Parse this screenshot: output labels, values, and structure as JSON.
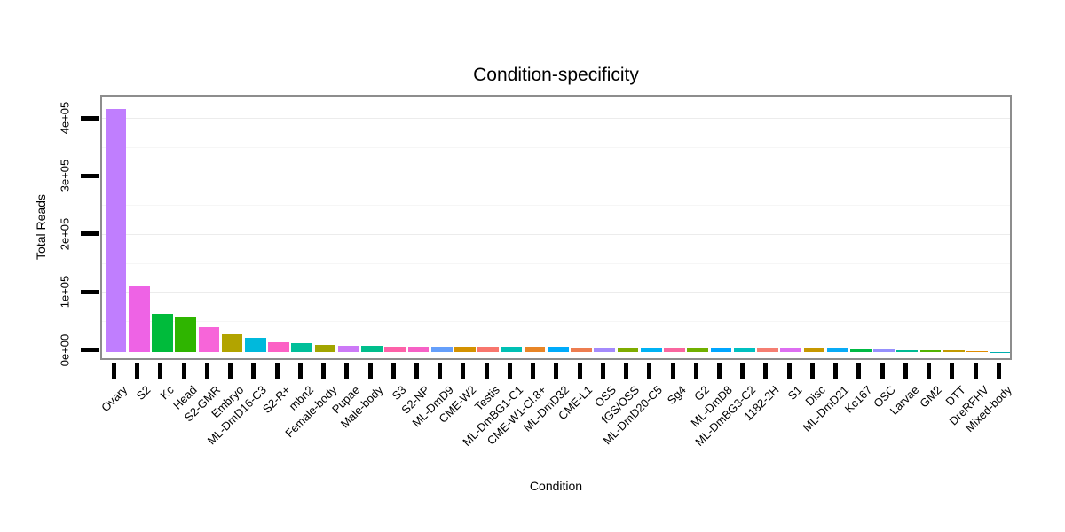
{
  "chart_data": {
    "type": "bar",
    "title": "Condition-specificity",
    "xlabel": "Condition",
    "ylabel": "Total Reads",
    "ylim": [
      0,
      440000
    ],
    "ytick_labels": [
      "0e+00",
      "1e+05",
      "2e+05",
      "3e+05",
      "4e+05"
    ],
    "ytick_values": [
      0,
      100000,
      200000,
      300000,
      400000
    ],
    "minor_gridline_values": [
      50000,
      150000,
      250000,
      350000
    ],
    "grid": "faint major and minor horizontal gridlines",
    "legend_position": "none",
    "x_label_angle": 45,
    "categories": [
      "Ovary",
      "S2",
      "Kc",
      "Head",
      "S2-GMR",
      "Embryo",
      "ML-DmD16-C3",
      "S2-R+",
      "mbn2",
      "Female-body",
      "Pupae",
      "Male-body",
      "S3",
      "S2-NP",
      "ML-DmD9",
      "CME-W2",
      "Testis",
      "ML-DmBG1-C1",
      "CME-W1-Cl.8+",
      "ML-DmD32",
      "CME-L1",
      "OSS",
      "fGS/OSS",
      "ML-DmD20-C5",
      "Sg4",
      "G2",
      "ML-DmD8",
      "ML-DmBG3-C2",
      "1182-2H",
      "S1",
      "Disc",
      "ML-DmD21",
      "Kc167",
      "OSC",
      "Larvae",
      "GM2",
      "DTT",
      "DreRFHV",
      "Mixed-body"
    ],
    "values": [
      418000,
      113000,
      65500,
      60500,
      41500,
      30500,
      24500,
      15500,
      14000,
      11500,
      10500,
      10000,
      9200,
      9000,
      8800,
      8600,
      8400,
      8300,
      8100,
      7800,
      7600,
      7400,
      7200,
      7000,
      6800,
      6600,
      6200,
      6000,
      5800,
      5600,
      5400,
      5100,
      4700,
      4400,
      2400,
      2100,
      1900,
      250,
      150
    ],
    "colors": [
      "#C07EFE",
      "#EE63E5",
      "#00BB3B",
      "#2FB500",
      "#F765D9",
      "#B2A400",
      "#00B9DC",
      "#FC61C5",
      "#00BF9A",
      "#A2A500",
      "#CC79F7",
      "#00BE8C",
      "#FD61A8",
      "#F661C6",
      "#659FFB",
      "#D49200",
      "#F8766D",
      "#00C0B4",
      "#E88526",
      "#00ABFB",
      "#ED7D50",
      "#A48AFC",
      "#7FAC00",
      "#00B2F4",
      "#F9669F",
      "#71B000",
      "#00A6FF",
      "#00C0C0",
      "#F57E72",
      "#DD6EF1",
      "#C79800",
      "#09ABF6",
      "#00B944",
      "#9590FD",
      "#00BA93",
      "#52B300",
      "#C29A00",
      "#E08B00",
      "#00AEAE"
    ]
  },
  "style_colors": {
    "panel_border": "#8d8d8d",
    "tick": "#000000",
    "major_grid": "#ececec",
    "minor_grid": "#f6f6f6",
    "background": "#ffffff"
  }
}
